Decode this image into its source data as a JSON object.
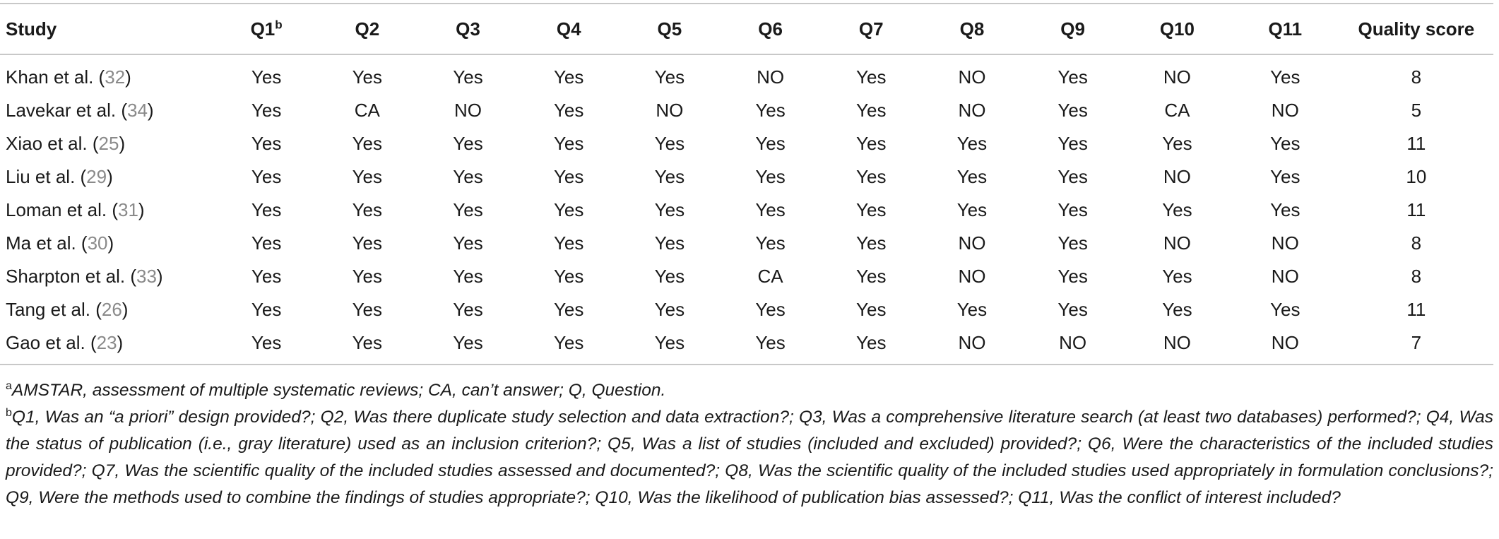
{
  "table": {
    "columns": [
      "Study",
      "Q1",
      "Q2",
      "Q3",
      "Q4",
      "Q5",
      "Q6",
      "Q7",
      "Q8",
      "Q9",
      "Q10",
      "Q11",
      "Quality score"
    ],
    "q1_superscript": "b",
    "rows": [
      {
        "name": "Khan et al. (",
        "ref": "32",
        "close": ")",
        "values": [
          "Yes",
          "Yes",
          "Yes",
          "Yes",
          "Yes",
          "NO",
          "Yes",
          "NO",
          "Yes",
          "NO",
          "Yes"
        ],
        "score": "8"
      },
      {
        "name": "Lavekar et al. (",
        "ref": "34",
        "close": ")",
        "values": [
          "Yes",
          "CA",
          "NO",
          "Yes",
          "NO",
          "Yes",
          "Yes",
          "NO",
          "Yes",
          "CA",
          "NO"
        ],
        "score": "5"
      },
      {
        "name": "Xiao et al. (",
        "ref": "25",
        "close": ")",
        "values": [
          "Yes",
          "Yes",
          "Yes",
          "Yes",
          "Yes",
          "Yes",
          "Yes",
          "Yes",
          "Yes",
          "Yes",
          "Yes"
        ],
        "score": "11"
      },
      {
        "name": "Liu et al. (",
        "ref": "29",
        "close": ")",
        "values": [
          "Yes",
          "Yes",
          "Yes",
          "Yes",
          "Yes",
          "Yes",
          "Yes",
          "Yes",
          "Yes",
          "NO",
          "Yes"
        ],
        "score": "10"
      },
      {
        "name": "Loman et al. (",
        "ref": "31",
        "close": ")",
        "values": [
          "Yes",
          "Yes",
          "Yes",
          "Yes",
          "Yes",
          "Yes",
          "Yes",
          "Yes",
          "Yes",
          "Yes",
          "Yes"
        ],
        "score": "11"
      },
      {
        "name": "Ma et al. (",
        "ref": "30",
        "close": ")",
        "values": [
          "Yes",
          "Yes",
          "Yes",
          "Yes",
          "Yes",
          "Yes",
          "Yes",
          "NO",
          "Yes",
          "NO",
          "NO"
        ],
        "score": "8"
      },
      {
        "name": "Sharpton et al. (",
        "ref": "33",
        "close": ")",
        "values": [
          "Yes",
          "Yes",
          "Yes",
          "Yes",
          "Yes",
          "CA",
          "Yes",
          "NO",
          "Yes",
          "Yes",
          "NO"
        ],
        "score": "8"
      },
      {
        "name": "Tang et al. (",
        "ref": "26",
        "close": ")",
        "values": [
          "Yes",
          "Yes",
          "Yes",
          "Yes",
          "Yes",
          "Yes",
          "Yes",
          "Yes",
          "Yes",
          "Yes",
          "Yes"
        ],
        "score": "11"
      },
      {
        "name": "Gao et al. (",
        "ref": "23",
        "close": ")",
        "values": [
          "Yes",
          "Yes",
          "Yes",
          "Yes",
          "Yes",
          "Yes",
          "Yes",
          "NO",
          "NO",
          "NO",
          "NO"
        ],
        "score": "7"
      }
    ]
  },
  "footnotes": {
    "a": {
      "mark": "a",
      "text": "AMSTAR, assessment of multiple systematic reviews; CA, can’t answer; Q, Question."
    },
    "b": {
      "mark": "b",
      "text": "Q1, Was an “a priori” design provided?; Q2, Was there duplicate study selection and data extraction?; Q3, Was a comprehensive literature search (at least two databases) performed?; Q4, Was the status of publication (i.e., gray literature) used as an inclusion criterion?; Q5, Was a list of studies (included and excluded) provided?; Q6, Were the characteristics of the included studies provided?; Q7, Was the scientific quality of the included studies assessed and documented?; Q8, Was the scientific quality of the included studies used appropriately in formulation conclusions?; Q9, Were the methods used to combine the findings of studies appropriate?; Q10, Was the likelihood of publication bias assessed?; Q11, Was the conflict of interest included?"
    }
  }
}
